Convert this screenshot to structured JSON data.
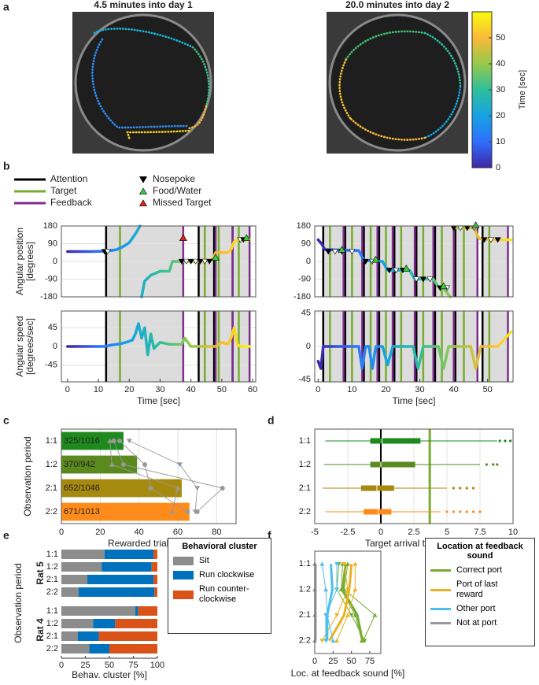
{
  "chart_data": [
    {
      "type": "colorbar",
      "panel": "a",
      "titles": [
        "4.5 minutes into day 1",
        "20.0 minutes into day 2"
      ],
      "colorbar_label": "Time [sec]",
      "ylim": [
        0,
        60
      ],
      "yticks": [
        0,
        10,
        20,
        30,
        40,
        50
      ],
      "colors": [
        "#3e26a8",
        "#2f6ffc",
        "#16a3e3",
        "#2ebf9c",
        "#96c94a",
        "#fbb938",
        "#f9fb0e"
      ]
    },
    {
      "type": "legend",
      "panel": "b",
      "lines": [
        {
          "name": "Attention",
          "color": "#000000"
        },
        {
          "name": "Target",
          "color": "#77ac30"
        },
        {
          "name": "Feedback",
          "color": "#7e2f8e"
        }
      ],
      "markers": [
        {
          "name": "Nosepoke",
          "color": "#000000"
        },
        {
          "name": "Food/Water",
          "color": "#3ccf3c"
        },
        {
          "name": "Missed Target",
          "color": "#e02020"
        }
      ]
    },
    {
      "type": "line",
      "ylabel": [
        "Angular position",
        "[degrees]"
      ],
      "xlim": [
        -2,
        61
      ],
      "ylim": [
        -180,
        180
      ],
      "yticks": [
        -180,
        -90,
        0,
        90,
        180
      ],
      "x": [
        0,
        4,
        8,
        12,
        14,
        16,
        18,
        20,
        22,
        23.5,
        23.6,
        24,
        25,
        27,
        30,
        33,
        34,
        37,
        40,
        44,
        47,
        48,
        50,
        52,
        53,
        54,
        55,
        57,
        59
      ],
      "values": [
        50,
        50,
        50,
        52,
        55,
        60,
        75,
        95,
        140,
        180,
        null,
        -180,
        -100,
        -70,
        -50,
        -50,
        0,
        0,
        0,
        0,
        10,
        45,
        45,
        45,
        60,
        100,
        110,
        110,
        110
      ],
      "events": {
        "attention": [
          12.5,
          42.5,
          47.5,
          53.5
        ],
        "target": [
          17,
          44.5,
          49,
          55.5
        ],
        "feedback": [
          37.5,
          48,
          53.5,
          59
        ]
      },
      "markers": {
        "nosepoke": {
          "x": [
            12,
            13,
            37,
            38.5,
            40,
            41.5,
            43,
            44.5,
            46,
            56,
            57
          ],
          "y": [
            50,
            50,
            0,
            0,
            0,
            0,
            0,
            0,
            0,
            110,
            110
          ]
        },
        "food": {
          "x": [
            48,
            58
          ],
          "y": [
            20,
            120
          ]
        },
        "missed": {
          "x": [
            37.5
          ],
          "y": [
            120
          ]
        }
      }
    },
    {
      "type": "line",
      "xlim": [
        -1,
        57.5
      ],
      "ylim": [
        -180,
        180
      ],
      "yticks": [
        -180,
        -90,
        0,
        90,
        180
      ],
      "x": [
        0,
        1,
        2,
        12,
        13.5,
        19,
        20.5,
        27,
        28.5,
        34,
        35.5,
        37,
        38.5,
        39,
        39.1,
        40,
        46,
        47.5,
        52,
        57
      ],
      "values": [
        110,
        90,
        60,
        55,
        5,
        0,
        -45,
        -45,
        -90,
        -90,
        -130,
        -135,
        -170,
        -180,
        null,
        170,
        170,
        115,
        110,
        110
      ],
      "events": {
        "attention": [
          1.5,
          8,
          13.5,
          18,
          22.5,
          29,
          34.5,
          40.5,
          48.5
        ],
        "target": [
          3.5,
          10,
          15.5,
          20,
          24.5,
          31,
          36.5,
          43,
          50.5
        ],
        "feedback": [
          7.5,
          13,
          17.5,
          22,
          28.5,
          34,
          40,
          47,
          56
        ]
      },
      "markers": {
        "nosepoke": {
          "x": [
            3,
            5,
            7,
            10,
            14,
            16,
            21,
            23,
            25,
            29,
            31,
            33,
            36,
            38,
            40,
            42,
            44,
            46,
            49,
            51,
            53
          ],
          "y": [
            50,
            50,
            50,
            50,
            0,
            0,
            -45,
            -45,
            -45,
            -90,
            -90,
            -90,
            -135,
            -135,
            170,
            170,
            170,
            170,
            110,
            110,
            110
          ]
        },
        "food": {
          "x": [
            7,
            17,
            26,
            37,
            46.5
          ],
          "y": [
            60,
            10,
            -35,
            -125,
            185
          ]
        }
      }
    },
    {
      "type": "line",
      "ylabel": [
        "Angular speed",
        "[degrees/sec]"
      ],
      "xlabel": "Time [sec]",
      "xlim": [
        -2,
        61
      ],
      "xticks": [
        0,
        10,
        20,
        30,
        40,
        50,
        60
      ],
      "ylim": [
        -85,
        85
      ],
      "yticks": [
        -45,
        0,
        45
      ],
      "x": [
        0,
        10,
        12,
        14,
        17,
        19,
        21,
        22,
        23,
        24,
        25,
        26,
        27,
        28,
        30,
        33,
        37,
        38,
        40,
        45,
        48,
        50,
        52,
        53,
        54,
        55,
        56,
        57,
        59
      ],
      "values": [
        0,
        0,
        0,
        3,
        6,
        10,
        15,
        30,
        55,
        20,
        45,
        -20,
        30,
        -5,
        10,
        5,
        5,
        20,
        0,
        0,
        0,
        10,
        5,
        20,
        45,
        5,
        0,
        0,
        0
      ],
      "events": {
        "attention": [
          12.5,
          42.5,
          47.5,
          53.5
        ],
        "target": [
          17,
          44.5,
          49,
          55.5
        ],
        "feedback": [
          37.5,
          48,
          53.5,
          59
        ]
      }
    },
    {
      "type": "line",
      "xlabel": "Time [sec]",
      "xlim": [
        -1,
        57.5
      ],
      "xticks": [
        0,
        10,
        20,
        30,
        40,
        50
      ],
      "ylim": [
        -48,
        48
      ],
      "yticks": [
        -45,
        0,
        45
      ],
      "x": [
        0,
        0.8,
        1.5,
        3,
        12,
        13,
        14,
        15,
        16,
        17,
        19,
        20.5,
        22,
        28,
        29.5,
        31,
        35.5,
        37,
        38.5,
        45,
        46.5,
        48,
        53,
        55,
        57
      ],
      "values": [
        -20,
        -30,
        0,
        0,
        0,
        -30,
        0,
        0,
        -30,
        0,
        0,
        -25,
        0,
        0,
        -30,
        0,
        0,
        -30,
        0,
        0,
        -30,
        0,
        0,
        10,
        20
      ],
      "events": {
        "attention": [
          1.5,
          8,
          13.5,
          18,
          22.5,
          29,
          34.5,
          40.5,
          48.5
        ],
        "target": [
          3.5,
          10,
          15.5,
          20,
          24.5,
          31,
          36.5,
          43,
          50.5
        ],
        "feedback": [
          7.5,
          13,
          17.5,
          22,
          28.5,
          34,
          40,
          47,
          56
        ]
      }
    },
    {
      "type": "hbar",
      "panel": "c",
      "categories": [
        "1:1",
        "1:2",
        "2:1",
        "2:2"
      ],
      "values": [
        32,
        39,
        62,
        66
      ],
      "value_labels": [
        "325/1016",
        "370/942",
        "652/1046",
        "671/1013"
      ],
      "colors": [
        "#1e8a1e",
        "#5a8a1e",
        "#a68a10",
        "#ff8c1a"
      ],
      "rats": [
        [
          25,
          26,
          60,
          57
        ],
        [
          27,
          32,
          83,
          70
        ],
        [
          35,
          61,
          70,
          69
        ],
        [
          30,
          43,
          46,
          65
        ]
      ],
      "rat_color": "#999999",
      "xlim": [
        0,
        90
      ],
      "xticks": [
        0,
        20,
        40,
        60,
        80
      ],
      "xlabel": "Rewarded trials [%]",
      "ylabel": "Observation period"
    },
    {
      "type": "box",
      "panel": "d",
      "categories": [
        "1:1",
        "1:2",
        "2:1",
        "2:2"
      ],
      "colors": [
        "#1e8a1e",
        "#5a8a1e",
        "#a68a10",
        "#ff8c1a"
      ],
      "low": [
        -4.2,
        -4.3,
        -4.4,
        -4.2
      ],
      "q1": [
        -0.8,
        -0.8,
        -1.5,
        -1.3
      ],
      "median": [
        0.1,
        0,
        -0.3,
        -0.2
      ],
      "q3": [
        3,
        2.6,
        1,
        0.8
      ],
      "high": [
        8.8,
        7.5,
        5,
        4.5
      ],
      "outliers": [
        [
          9,
          9.4,
          9.8
        ],
        [
          8,
          8.5,
          8.8
        ],
        [
          5.5,
          6,
          6.5,
          7
        ],
        [
          5,
          5.5,
          6,
          6.5,
          7,
          7.5
        ]
      ],
      "reference_lines": [
        0,
        3.7
      ],
      "reference_colors": [
        "#000000",
        "#77ac30"
      ],
      "xlim": [
        -5,
        10
      ],
      "xticks": [
        -5,
        -2.5,
        0,
        2.5,
        5,
        7.5,
        10
      ],
      "xlabel": "Target arrival time [sec]"
    },
    {
      "type": "stacked_hbar",
      "panel": "e",
      "groups": [
        "Rat 5",
        "Rat 4"
      ],
      "categories": [
        "1:1",
        "1:2",
        "2:1",
        "2:2"
      ],
      "series": [
        {
          "name": "Sit",
          "color": "#8c8c8c",
          "values": [
            [
              45,
              42,
              27,
              18
            ],
            [
              77,
              33,
              17,
              29
            ]
          ]
        },
        {
          "name": "Run clockwise",
          "color": "#0072bd",
          "values": [
            [
              51,
              52,
              69,
              79
            ],
            [
              3,
              23,
              22,
              21
            ]
          ]
        },
        {
          "name": "Run counter-clockwise",
          "color": "#d95319",
          "values": [
            [
              4,
              6,
              4,
              3
            ],
            [
              20,
              44,
              61,
              50
            ]
          ]
        }
      ],
      "xlim": [
        0,
        100
      ],
      "xticks": [
        0,
        25,
        50,
        75,
        100
      ],
      "xlabel": "Behav. cluster [%]",
      "ylabel": "Observation period",
      "legend_title": "Behavioral cluster"
    },
    {
      "type": "dot_lines",
      "panel": "f",
      "categories": [
        "1:1",
        "1:2",
        "2:1",
        "2:2"
      ],
      "series": [
        {
          "name": "Correct port",
          "color": "#77ac30",
          "values": [
            42,
            38,
            58,
            65
          ],
          "rats": [
            [
              45,
              40,
              82,
              66
            ],
            [
              33,
              30,
              50,
              68
            ],
            [
              38,
              36,
              55,
              64
            ]
          ]
        },
        {
          "name": "Port of last reward",
          "color": "#edb120",
          "values": [
            50,
            47,
            40,
            20
          ],
          "rats": [
            [
              55,
              55,
              45,
              30
            ],
            [
              40,
              45,
              30,
              10
            ]
          ]
        },
        {
          "name": "Other port",
          "color": "#4dbeee",
          "values": [
            22,
            24,
            17,
            17
          ],
          "rats": [
            [
              10,
              15,
              17,
              25
            ],
            [
              30,
              30,
              15,
              15
            ]
          ]
        },
        {
          "name": "Not at port",
          "color": "#999999",
          "values": [
            1,
            1,
            1,
            1
          ],
          "rats": [
            [
              0,
              0,
              0,
              0
            ]
          ]
        }
      ],
      "xlim": [
        0,
        90
      ],
      "xticks": [
        0,
        25,
        50,
        75
      ],
      "xlabel": "Loc. at feedback sound [%]",
      "legend_title": "Location at feedback sound"
    }
  ]
}
